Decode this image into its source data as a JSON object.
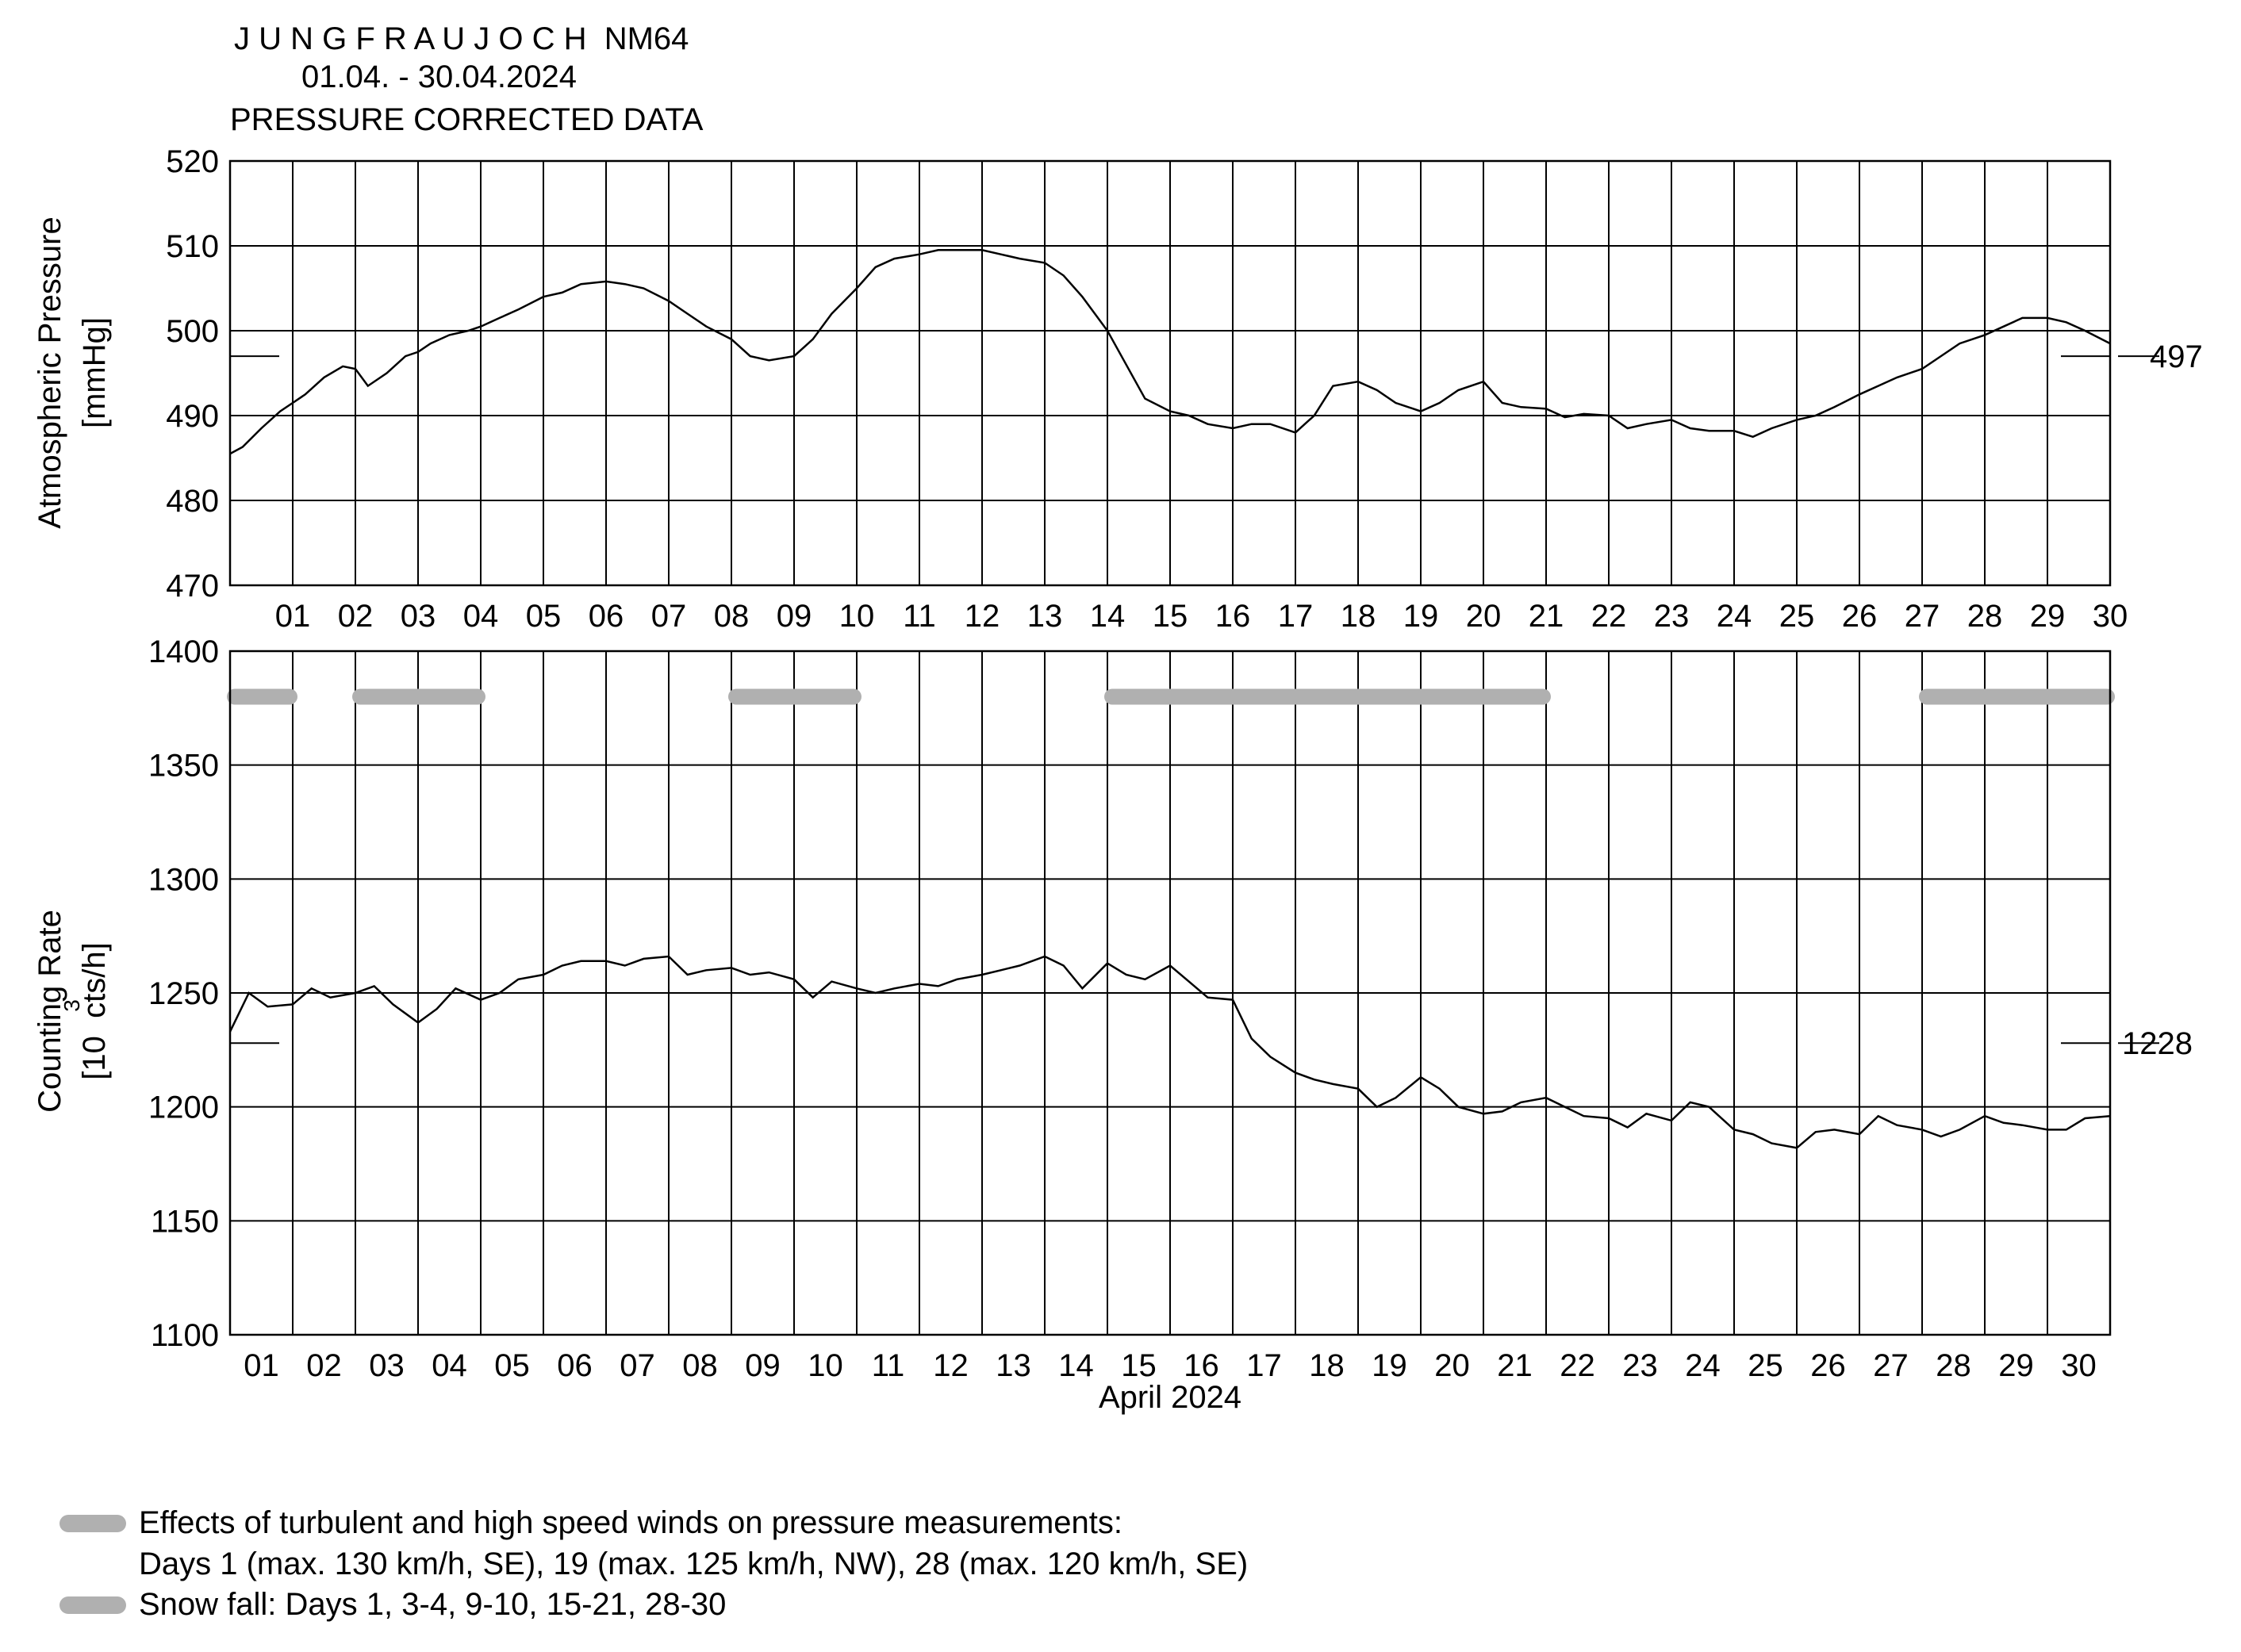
{
  "header": {
    "station": "J U N G F R A U J O C H  NM64",
    "period": "01.04. - 30.04.2024",
    "subtitle": "PRESSURE CORRECTED DATA"
  },
  "colors": {
    "line": "#000000",
    "wind_band": "#b0b0b0",
    "grid": "#000000"
  },
  "chart_data": [
    {
      "type": "line",
      "name": "pressure",
      "ylabel_line1": "Atmospheric Pressure",
      "ylabel_line2": "[mmHg]",
      "ylim": [
        470,
        520
      ],
      "yticks": [
        470,
        480,
        490,
        500,
        510,
        520
      ],
      "xlim": [
        0,
        30
      ],
      "tick_mode": "boundary",
      "xtick_labels": [
        "01",
        "02",
        "03",
        "04",
        "05",
        "06",
        "07",
        "08",
        "09",
        "10",
        "11",
        "12",
        "13",
        "14",
        "15",
        "16",
        "17",
        "18",
        "19",
        "20",
        "21",
        "22",
        "23",
        "24",
        "25",
        "26",
        "27",
        "28",
        "29",
        "30"
      ],
      "reference_value": 497,
      "reference_label": "497",
      "grid": true,
      "series_x_days": [
        0,
        0.2,
        0.5,
        0.8,
        1.0,
        1.2,
        1.5,
        1.8,
        2.0,
        2.2,
        2.5,
        2.8,
        3.0,
        3.2,
        3.5,
        3.8,
        4.0,
        4.3,
        4.6,
        5.0,
        5.3,
        5.6,
        6.0,
        6.3,
        6.6,
        7.0,
        7.3,
        7.6,
        8.0,
        8.3,
        8.6,
        9.0,
        9.3,
        9.6,
        10.0,
        10.3,
        10.6,
        11.0,
        11.3,
        11.6,
        12.0,
        12.3,
        12.6,
        13.0,
        13.3,
        13.6,
        14.0,
        14.3,
        14.6,
        15.0,
        15.3,
        15.6,
        16.0,
        16.3,
        16.6,
        17.0,
        17.3,
        17.6,
        18.0,
        18.3,
        18.6,
        19.0,
        19.3,
        19.6,
        20.0,
        20.3,
        20.6,
        21.0,
        21.3,
        21.6,
        22.0,
        22.3,
        22.6,
        23.0,
        23.3,
        23.6,
        24.0,
        24.3,
        24.6,
        25.0,
        25.3,
        25.6,
        26.0,
        26.3,
        26.6,
        27.0,
        27.3,
        27.6,
        28.0,
        28.3,
        28.6,
        29.0,
        29.3,
        29.6,
        30.0
      ],
      "series_y": [
        485.5,
        486.3,
        488.5,
        490.5,
        491.5,
        492.5,
        494.5,
        495.8,
        495.5,
        493.5,
        495.0,
        497.0,
        497.5,
        498.5,
        499.5,
        500.0,
        500.5,
        501.5,
        502.5,
        504.0,
        504.5,
        505.5,
        505.8,
        505.5,
        505.0,
        503.5,
        502.0,
        500.5,
        499.0,
        497.0,
        496.5,
        497.0,
        499.0,
        502.0,
        505.0,
        507.5,
        508.5,
        509.0,
        509.5,
        509.5,
        509.5,
        509.0,
        508.5,
        508.0,
        506.5,
        504.0,
        500.0,
        496.0,
        492.0,
        490.5,
        490.0,
        489.0,
        488.5,
        489.0,
        489.0,
        488.0,
        490.0,
        493.5,
        494.0,
        493.0,
        491.5,
        490.5,
        491.5,
        493.0,
        494.0,
        491.5,
        491.0,
        490.8,
        489.8,
        490.2,
        490.0,
        488.5,
        489.0,
        489.5,
        488.5,
        488.2,
        488.2,
        487.5,
        488.5,
        489.5,
        490.0,
        491.0,
        492.5,
        493.5,
        494.5,
        495.5,
        497.0,
        498.5,
        499.5,
        500.5,
        501.5,
        501.5,
        501.0,
        500.0,
        498.5
      ]
    },
    {
      "type": "line",
      "name": "counting_rate",
      "ylabel_line1": "Counting Rate",
      "ylabel_line2": "[10  cts/h]",
      "ylabel_sup": "3",
      "ylim": [
        1100,
        1400
      ],
      "yticks": [
        1100,
        1150,
        1200,
        1250,
        1300,
        1350,
        1400
      ],
      "xlim": [
        0,
        30
      ],
      "tick_mode": "center",
      "xtick_labels": [
        "01",
        "02",
        "03",
        "04",
        "05",
        "06",
        "07",
        "08",
        "09",
        "10",
        "11",
        "12",
        "13",
        "14",
        "15",
        "16",
        "17",
        "18",
        "19",
        "20",
        "21",
        "22",
        "23",
        "24",
        "25",
        "26",
        "27",
        "28",
        "29",
        "30"
      ],
      "xlabel": "April 2024",
      "reference_value": 1228,
      "reference_label": "1228",
      "grid": true,
      "wind_bands_days": [
        [
          0,
          1
        ],
        [
          2,
          4
        ],
        [
          8,
          10
        ],
        [
          14,
          21
        ],
        [
          27,
          30
        ]
      ],
      "wind_band_value": 1380,
      "series_x_days": [
        0,
        0.3,
        0.6,
        1.0,
        1.3,
        1.6,
        2.0,
        2.3,
        2.6,
        3.0,
        3.3,
        3.6,
        4.0,
        4.3,
        4.6,
        5.0,
        5.3,
        5.6,
        6.0,
        6.3,
        6.6,
        7.0,
        7.3,
        7.6,
        8.0,
        8.3,
        8.6,
        9.0,
        9.3,
        9.6,
        10.0,
        10.3,
        10.6,
        11.0,
        11.3,
        11.6,
        12.0,
        12.3,
        12.6,
        13.0,
        13.3,
        13.6,
        14.0,
        14.3,
        14.6,
        15.0,
        15.3,
        15.6,
        16.0,
        16.3,
        16.6,
        17.0,
        17.3,
        17.6,
        18.0,
        18.3,
        18.6,
        19.0,
        19.3,
        19.6,
        20.0,
        20.3,
        20.6,
        21.0,
        21.3,
        21.6,
        22.0,
        22.3,
        22.6,
        23.0,
        23.3,
        23.6,
        24.0,
        24.3,
        24.6,
        25.0,
        25.3,
        25.6,
        26.0,
        26.3,
        26.6,
        27.0,
        27.3,
        27.6,
        28.0,
        28.3,
        28.6,
        29.0,
        29.3,
        29.6,
        30.0
      ],
      "series_y": [
        1233,
        1250,
        1244,
        1245,
        1252,
        1248,
        1250,
        1253,
        1245,
        1237,
        1243,
        1252,
        1247,
        1250,
        1256,
        1258,
        1262,
        1264,
        1264,
        1262,
        1265,
        1266,
        1258,
        1260,
        1261,
        1258,
        1259,
        1256,
        1248,
        1255,
        1252,
        1250,
        1252,
        1254,
        1253,
        1256,
        1258,
        1260,
        1262,
        1266,
        1262,
        1252,
        1263,
        1258,
        1256,
        1262,
        1255,
        1248,
        1247,
        1230,
        1222,
        1215,
        1212,
        1210,
        1208,
        1200,
        1204,
        1213,
        1208,
        1200,
        1197,
        1198,
        1202,
        1204,
        1200,
        1196,
        1195,
        1191,
        1197,
        1194,
        1202,
        1200,
        1190,
        1188,
        1184,
        1182,
        1189,
        1190,
        1188,
        1196,
        1192,
        1190,
        1187,
        1190,
        1196,
        1193,
        1192,
        1190,
        1190,
        1195,
        1196
      ]
    }
  ],
  "legend": {
    "wind_text_line1": "Effects of turbulent and high speed winds on pressure measurements:",
    "wind_text_line2": "Days 1 (max. 130 km/h, SE), 19 (max. 125 km/h, NW), 28 (max. 120 km/h, SE)",
    "snow_text": "Snow fall: Days 1, 3-4, 9-10, 15-21, 28-30"
  }
}
